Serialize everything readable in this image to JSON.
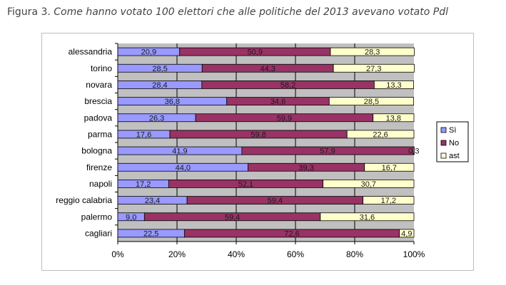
{
  "caption": {
    "prefix": "Figura 3.",
    "title": "Come hanno votato 100 elettori che alle politiche del 2013 avevano votato Pdl"
  },
  "chart_data": {
    "type": "bar",
    "orientation": "horizontal",
    "stacked": "100%",
    "categories": [
      "alessandria",
      "torino",
      "novara",
      "brescia",
      "padova",
      "parma",
      "bologna",
      "firenze",
      "napoli",
      "reggio calabria",
      "palermo",
      "cagliari"
    ],
    "series": [
      {
        "name": "Sì",
        "color": "#9999ff",
        "values": [
          20.9,
          28.5,
          28.4,
          36.8,
          26.3,
          17.6,
          41.9,
          44.0,
          17.2,
          23.4,
          9.0,
          22.5
        ],
        "labels": [
          "20,9",
          "28,5",
          "28,4",
          "36,8",
          "26,3",
          "17,6",
          "41,9",
          "44,0",
          "17,2",
          "23,4",
          "9,0",
          "22,5"
        ]
      },
      {
        "name": "No",
        "color": "#993366",
        "values": [
          50.9,
          44.3,
          58.2,
          34.6,
          59.9,
          59.8,
          57.9,
          39.3,
          52.1,
          59.4,
          59.4,
          72.6
        ],
        "labels": [
          "50,9",
          "44,3",
          "58,2",
          "34,6",
          "59,9",
          "59,8",
          "57,9",
          "39,3",
          "52,1",
          "59,4",
          "59,4",
          "72,6"
        ]
      },
      {
        "name": "ast",
        "color": "#ffffcc",
        "values": [
          28.3,
          27.3,
          13.3,
          28.5,
          13.8,
          22.6,
          0.3,
          16.7,
          30.7,
          17.2,
          31.6,
          4.9
        ],
        "labels": [
          "28,3",
          "27,3",
          "13,3",
          "28,5",
          "13,8",
          "22,6",
          "0,3",
          "16,7",
          "30,7",
          "17,2",
          "31,6",
          "4,9"
        ]
      }
    ],
    "x_ticks": [
      "0%",
      "20%",
      "40%",
      "60%",
      "80%",
      "100%"
    ],
    "xlim": [
      0,
      100
    ],
    "plot_background": "#c0c0c0",
    "gridlines": true,
    "legend_position": "right"
  }
}
